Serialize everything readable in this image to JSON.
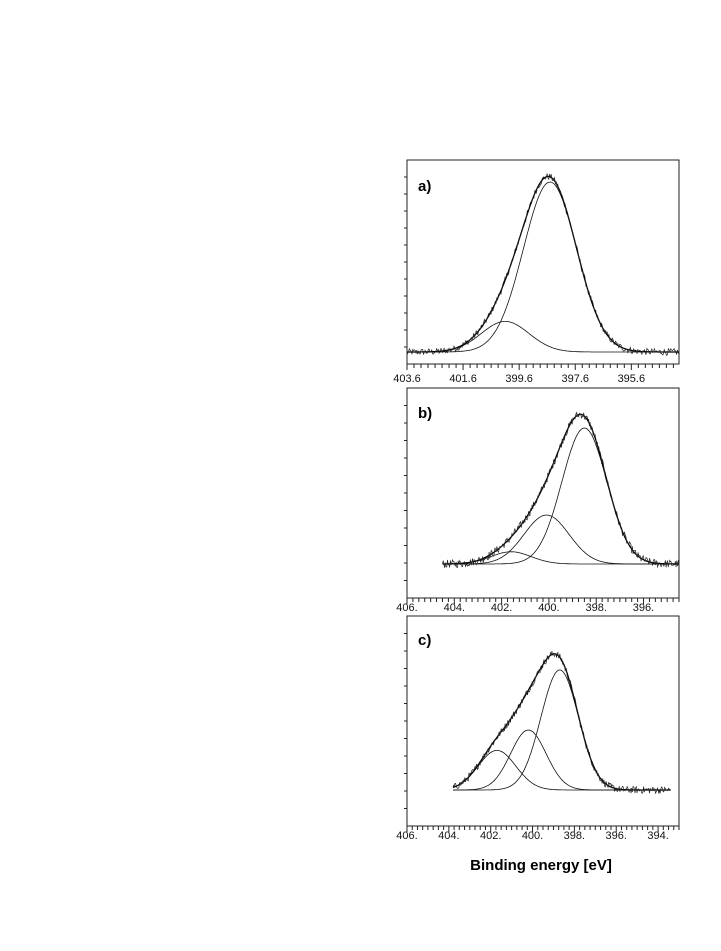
{
  "figure": {
    "xlabel": "Binding energy [eV]"
  },
  "chart_data": [
    {
      "type": "line",
      "panel_label": "a)",
      "xlim": [
        403.6,
        393.9
      ],
      "x_ticks": [
        403.6,
        401.6,
        399.6,
        397.6,
        395.6
      ],
      "x_tick_labels": [
        "403.6",
        "401.6",
        "399.6",
        "397.6",
        "395.6"
      ],
      "data_range": [
        403.6,
        393.9
      ],
      "components": [
        {
          "center": 398.5,
          "height": 1.0,
          "width": 0.95
        },
        {
          "center": 400.1,
          "height": 0.18,
          "width": 0.85
        }
      ],
      "noise": 0.02
    },
    {
      "type": "line",
      "panel_label": "b)",
      "xlim": [
        406.0,
        394.5
      ],
      "x_ticks": [
        406.0,
        404.0,
        402.0,
        400.0,
        398.0,
        396.0
      ],
      "x_tick_labels": [
        "406.",
        "404.",
        "402.",
        "400.",
        "398.",
        "396."
      ],
      "data_range": [
        404.5,
        394.5
      ],
      "components": [
        {
          "center": 398.5,
          "height": 1.0,
          "width": 0.95
        },
        {
          "center": 400.1,
          "height": 0.36,
          "width": 0.95
        },
        {
          "center": 401.6,
          "height": 0.09,
          "width": 0.85
        }
      ],
      "noise": 0.03
    },
    {
      "type": "line",
      "panel_label": "c)",
      "xlim": [
        406.0,
        393.0
      ],
      "x_ticks": [
        406.0,
        404.0,
        402.0,
        400.0,
        398.0,
        396.0,
        394.0
      ],
      "x_tick_labels": [
        "406.",
        "404.",
        "402.",
        "400.",
        "398.",
        "396.",
        "394."
      ],
      "data_range": [
        403.8,
        393.4
      ],
      "components": [
        {
          "center": 398.7,
          "height": 1.0,
          "width": 0.9
        },
        {
          "center": 400.2,
          "height": 0.5,
          "width": 0.85
        },
        {
          "center": 401.7,
          "height": 0.33,
          "width": 0.9
        }
      ],
      "noise": 0.03
    }
  ]
}
